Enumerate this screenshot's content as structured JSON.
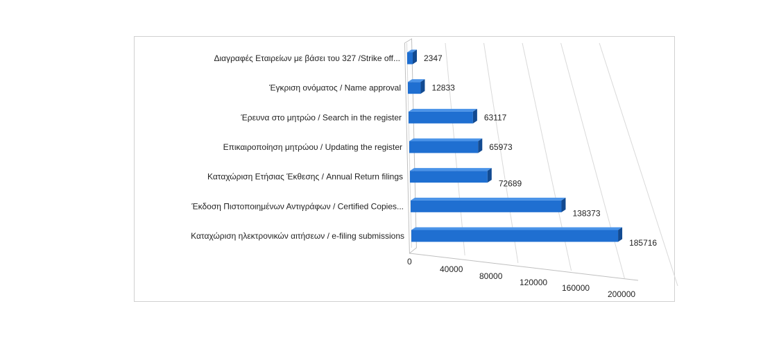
{
  "chart_data": {
    "type": "bar",
    "orientation": "horizontal",
    "style": "3d",
    "categories": [
      "Διαγραφές Εταιρείων  με βάσει του 327 /Strike off...",
      "Έγκριση ονόματος / Name approval",
      "Έρευνα στο μητρώο / Search in the register",
      "Επικαιροποίηση μητρώου / Updating the register",
      "Καταχώριση Ετήσιας Έκθεσης / Annual Return filings",
      "Έκδοση Πιστοποιημένων Αντιγράφων / Certified Copies...",
      "Καταχώριση ηλεκτρονικών αιτήσεων / e-filing submissions"
    ],
    "values": [
      2347,
      12833,
      63117,
      65973,
      72689,
      138373,
      185716
    ],
    "value_labels": [
      "2347",
      "12833",
      "63117",
      "65973",
      "72689",
      "138373",
      "185716"
    ],
    "x_ticks": [
      "0",
      "40000",
      "80000",
      "120000",
      "160000",
      "200000"
    ],
    "xlim": [
      0,
      200000
    ],
    "bar_color": "#1f6fd1",
    "grid": true,
    "legend": "none"
  }
}
